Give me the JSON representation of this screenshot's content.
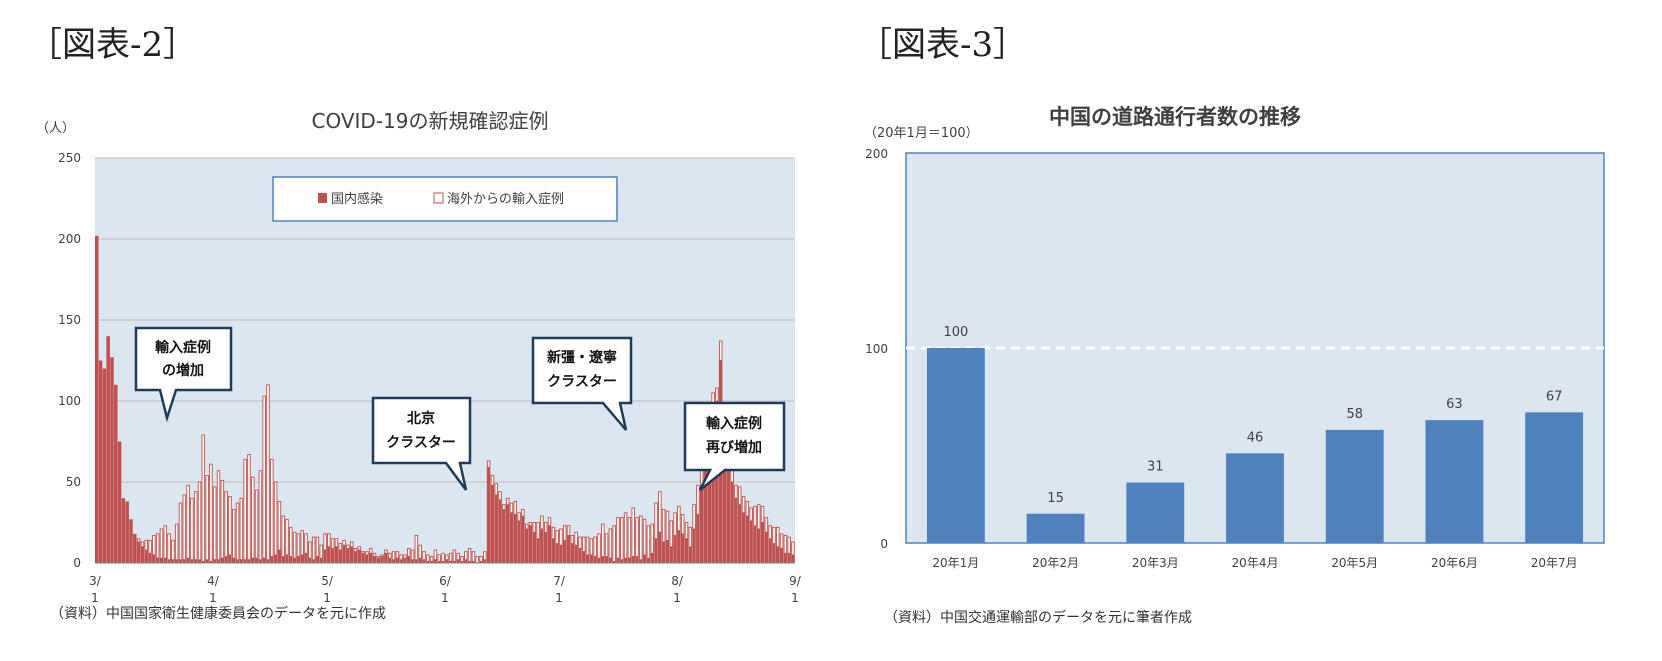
{
  "figures": [
    {
      "label": "［図表-2］",
      "source": "（資料）中国国家衛生健康委員会のデータを元に作成"
    },
    {
      "label": "［図表-3］",
      "source": "（資料）中国交通運輸部のデータを元に筆者作成"
    }
  ],
  "chart_data": [
    {
      "type": "bar",
      "title": "COVID-19の新規確認症例",
      "unit_label": "（人）",
      "ylim": [
        0,
        250
      ],
      "yticks": [
        0,
        50,
        100,
        150,
        200,
        250
      ],
      "xticks": [
        {
          "day": 0,
          "top": "3/",
          "bottom": "1"
        },
        {
          "day": 31,
          "top": "4/",
          "bottom": "1"
        },
        {
          "day": 61,
          "top": "5/",
          "bottom": "1"
        },
        {
          "day": 92,
          "top": "6/",
          "bottom": "1"
        },
        {
          "day": 122,
          "top": "7/",
          "bottom": "1"
        },
        {
          "day": 153,
          "top": "8/",
          "bottom": "1"
        },
        {
          "day": 184,
          "top": "9/",
          "bottom": "1"
        }
      ],
      "legend": {
        "placement": "top-center",
        "entries": [
          "国内感染",
          "海外からの輸入症例"
        ]
      },
      "grid": true,
      "colors": {
        "domestic": "#C0504D",
        "imported_edge": "#C0504D",
        "plot_bg": "#DCE6F1",
        "axis": "#7F7F7F"
      },
      "series": [
        {
          "name": "国内感染",
          "values": [
            202,
            125,
            120,
            140,
            127,
            110,
            75,
            40,
            38,
            27,
            18,
            13,
            10,
            8,
            6,
            5,
            3,
            3,
            3,
            2,
            2,
            2,
            2,
            2,
            3,
            2,
            2,
            2,
            1,
            2,
            1,
            2,
            2,
            3,
            4,
            5,
            3,
            2,
            2,
            2,
            2,
            3,
            3,
            2,
            3,
            2,
            4,
            5,
            8,
            4,
            5,
            4,
            3,
            4,
            5,
            6,
            3,
            2,
            4,
            3,
            8,
            10,
            9,
            10,
            8,
            11,
            9,
            10,
            7,
            8,
            6,
            5,
            6,
            4,
            3,
            4,
            6,
            3,
            2,
            3,
            2,
            3,
            4,
            2,
            2,
            3,
            2,
            1,
            1,
            2,
            1,
            1,
            2,
            1,
            1,
            2,
            1,
            2,
            1,
            1,
            0,
            1,
            2,
            2,
            3,
            2,
            1,
            1,
            1,
            1,
            2,
            1,
            2,
            1,
            1,
            1,
            0,
            1,
            1,
            1,
            0,
            0,
            1,
            0,
            1,
            0,
            1,
            1,
            1,
            0,
            1,
            1,
            1,
            2,
            1,
            1,
            0,
            1,
            1,
            1,
            2,
            1,
            2,
            1,
            1,
            1,
            1,
            0,
            1,
            1,
            0,
            0,
            1,
            0,
            0,
            1,
            0,
            1,
            0,
            0,
            0,
            0,
            1,
            0,
            0,
            0,
            1,
            0,
            0,
            1,
            1,
            1,
            1,
            1,
            1,
            0,
            1,
            0,
            0,
            0,
            1,
            0,
            1,
            1,
            0,
            0,
            1,
            0,
            0,
            0,
            0,
            0,
            0
          ]
        },
        {
          "name": "海外からの輸入症例",
          "values": [
            0,
            0,
            0,
            0,
            0,
            0,
            0,
            0,
            0,
            0,
            0,
            2,
            3,
            6,
            8,
            12,
            15,
            18,
            20,
            16,
            12,
            22,
            35,
            40,
            45,
            38,
            42,
            48,
            78,
            52,
            60,
            45,
            55,
            48,
            40,
            36,
            30,
            35,
            38,
            62,
            65,
            50,
            42,
            55,
            100,
            108,
            60,
            45,
            30,
            25,
            22,
            18,
            16,
            14,
            15,
            12,
            10,
            14,
            12,
            8,
            10,
            8,
            6,
            5,
            4,
            3,
            2,
            3,
            2,
            2,
            1,
            2,
            3,
            2,
            1,
            1,
            2,
            3,
            5,
            4,
            3,
            2,
            5,
            6,
            15,
            8,
            5,
            4,
            3,
            6,
            4,
            5,
            3,
            5,
            7,
            4,
            3,
            5,
            8,
            6,
            4,
            3,
            5,
            4,
            6,
            7,
            5,
            3,
            4,
            6,
            8,
            5,
            4,
            3,
            2,
            6,
            10,
            8,
            6,
            5,
            7,
            8,
            10,
            9,
            6,
            5,
            8,
            7,
            9,
            11,
            10,
            12,
            15,
            20,
            14,
            18,
            22,
            25,
            26,
            28,
            25,
            30,
            24,
            27,
            22,
            20,
            18,
            22,
            25,
            20,
            18,
            16,
            14,
            15,
            12,
            10,
            12,
            15,
            18,
            14,
            12,
            10,
            9,
            8,
            12,
            14,
            10,
            9,
            8,
            11,
            10,
            9,
            8,
            12,
            15,
            10,
            9,
            8,
            10,
            12,
            9,
            11,
            10,
            8
          ]
        },
        {
          "name": "国内感染",
          "values": [
            0,
            0,
            0,
            0,
            0,
            0,
            0,
            0,
            0,
            0,
            0,
            0,
            0,
            0,
            0,
            0,
            0,
            0,
            0,
            0,
            0,
            0,
            0,
            0,
            0,
            0,
            0,
            0,
            0,
            0,
            0,
            0,
            0,
            0,
            0,
            0,
            0,
            0,
            0,
            0,
            0,
            0,
            0,
            0,
            0,
            0,
            0,
            0,
            0,
            0,
            0,
            0,
            0,
            0,
            0,
            0,
            0,
            0,
            0,
            0,
            0,
            0,
            0,
            0,
            0,
            0,
            0,
            0,
            0,
            0,
            0,
            0,
            0,
            0,
            0,
            0,
            0,
            0,
            0,
            0,
            0,
            0,
            0,
            0,
            0,
            0,
            0,
            0,
            0,
            0,
            0,
            0,
            0,
            0,
            0,
            0,
            0,
            0,
            0,
            0,
            0,
            0,
            0,
            57,
            45,
            40,
            38,
            32,
            35,
            30,
            28,
            25,
            27,
            20,
            22,
            18,
            15,
            20,
            18,
            22,
            15,
            12,
            10,
            14,
            16,
            12,
            10,
            8,
            6,
            5,
            4,
            3,
            2,
            2,
            3,
            2,
            1,
            2,
            1,
            2,
            1,
            3,
            2,
            1,
            4,
            2,
            5,
            15,
            18,
            12,
            14,
            10,
            16,
            20,
            18,
            14,
            10,
            20,
            30,
            45,
            60,
            85,
            95,
            100,
            125,
            80,
            60,
            50,
            40,
            35,
            30,
            28,
            25,
            22,
            20,
            25,
            18,
            15,
            12,
            10,
            8,
            6,
            5,
            4,
            3
          ]
        }
      ],
      "callouts": [
        {
          "id": "import-increase",
          "lines": [
            "輸入症例",
            "の増加"
          ]
        },
        {
          "id": "beijing-cluster",
          "lines": [
            "北京",
            "クラスター"
          ]
        },
        {
          "id": "xinjiang-liaoning",
          "lines": [
            "新彊・遼寧",
            "クラスター"
          ]
        },
        {
          "id": "import-again",
          "lines": [
            "輸入症例",
            "再び増加"
          ]
        }
      ]
    },
    {
      "type": "bar",
      "title": "中国の道路通行者数の推移",
      "unit_label": "（20年1月＝100）",
      "ylim": [
        0,
        200
      ],
      "yticks": [
        0,
        100,
        200
      ],
      "reference_line": 100,
      "grid": false,
      "colors": {
        "bar": "#4F81BD",
        "plot_bg": "#DCE6F1",
        "frame": "#4F81BD",
        "ref_line": "#ffffff"
      },
      "categories": [
        "20年1月",
        "20年2月",
        "20年3月",
        "20年4月",
        "20年5月",
        "20年6月",
        "20年7月"
      ],
      "values": [
        100,
        15,
        31,
        46,
        58,
        63,
        67
      ]
    }
  ]
}
